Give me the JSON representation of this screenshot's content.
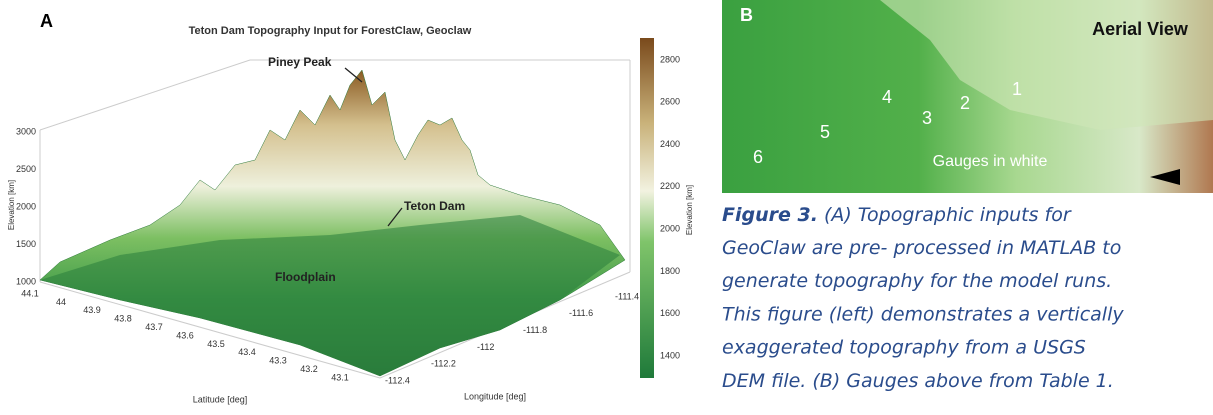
{
  "panel_a": {
    "label": "A",
    "title": "Teton Dam Topography Input for ForestClaw, Geoclaw",
    "z_axis_label": "Elevation [km]",
    "z_ticks": [
      "3000",
      "2500",
      "2000",
      "1500",
      "1000"
    ],
    "lat_ticks": [
      "44.1",
      "44",
      "43.9",
      "43.8",
      "43.7",
      "43.6",
      "43.5",
      "43.4",
      "43.3",
      "43.2",
      "43.1"
    ],
    "lat_label": "Latitude [deg]",
    "lon_ticks": [
      "-112.4",
      "-112.2",
      "-112",
      "-111.8",
      "-111.6",
      "-111.4"
    ],
    "lon_label": "Longitude [deg]",
    "colorbar_ticks": [
      "2800",
      "2600",
      "2400",
      "2200",
      "2000",
      "1800",
      "1600",
      "1400"
    ],
    "colorbar_label": "Elevation [km]",
    "annotations": [
      "Piney Peak",
      "Teton Dam",
      "Floodplain"
    ]
  },
  "panel_b": {
    "label": "B",
    "title": "Aerial View",
    "gauges": [
      "1",
      "2",
      "3",
      "4",
      "5",
      "6"
    ],
    "note": "Gauges in white"
  },
  "caption": {
    "label": "Figure 3.",
    "lines": [
      "(A) Topographic inputs for",
      "GeoClaw are pre- processed in MATLAB to",
      "generate topography for the model runs.",
      "This figure (left) demonstrates a vertically",
      "exaggerated topography from a USGS",
      "DEM file. (B) Gauges above from Table 1."
    ]
  }
}
